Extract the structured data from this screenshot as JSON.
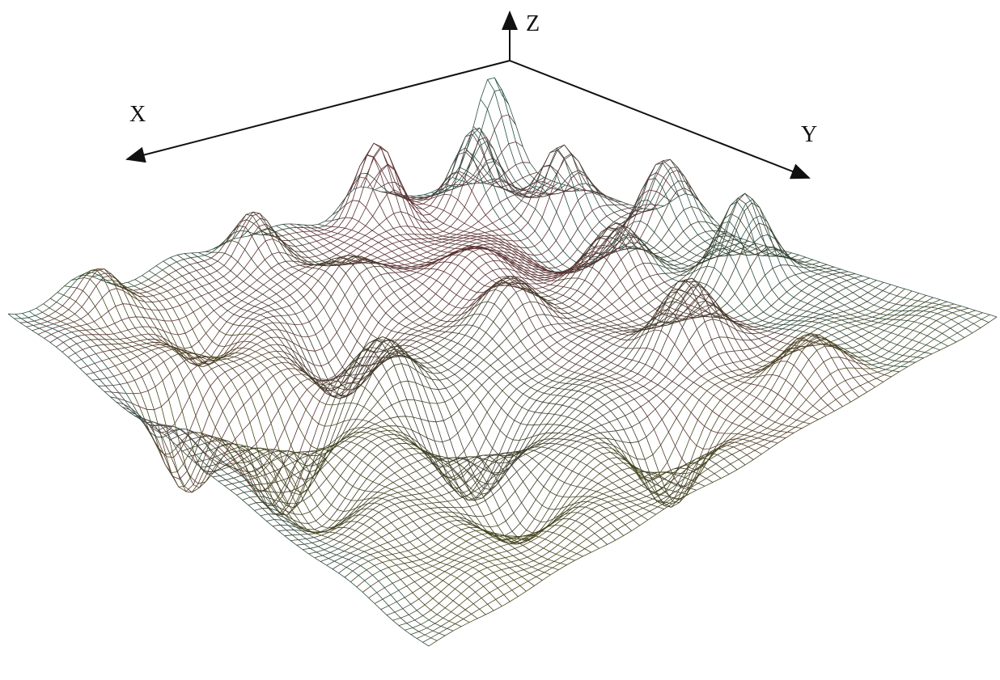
{
  "axes": {
    "x": "X",
    "y": "Y",
    "z": "Z"
  }
}
